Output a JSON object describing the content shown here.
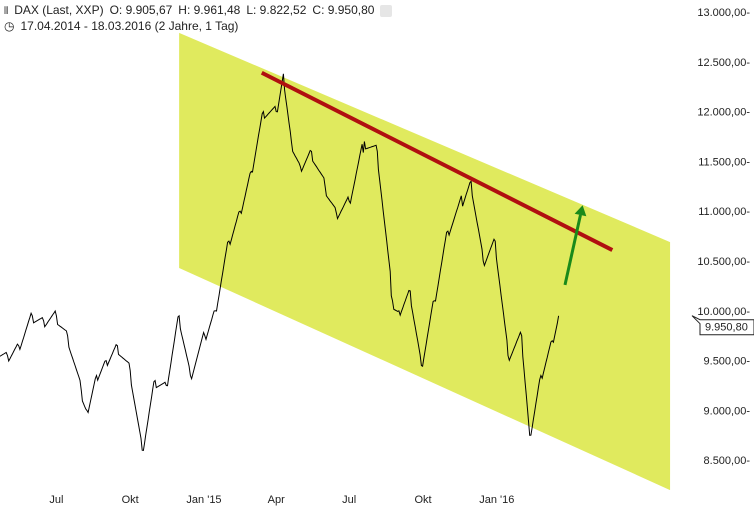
{
  "header": {
    "icon": "chart-bars-icon",
    "instrument": "DAX (Last, XXP)",
    "open": "O: 9.905,67",
    "high": "H: 9.961,48",
    "low": "L: 9.822,52",
    "close": "C: 9.950,80",
    "settings_icon": "settings-icon",
    "clock_icon": "clock-icon",
    "range": "17.04.2014 - 18.03.2016 (2 Jahre, 1 Tag)"
  },
  "chart_data": {
    "type": "line",
    "title": "",
    "ylim": [
      8300,
      13000
    ],
    "y_ticks": [
      {
        "v": 13000,
        "label": "13.000,00"
      },
      {
        "v": 12500,
        "label": "12.500,00"
      },
      {
        "v": 12000,
        "label": "12.000,00"
      },
      {
        "v": 11500,
        "label": "11.500,00"
      },
      {
        "v": 11000,
        "label": "11.000,00"
      },
      {
        "v": 10500,
        "label": "10.500,00"
      },
      {
        "v": 10000,
        "label": "10.000,00"
      },
      {
        "v": 9500,
        "label": "9.500,00"
      },
      {
        "v": 9000,
        "label": "9.000,00"
      },
      {
        "v": 8500,
        "label": "8.500,00"
      }
    ],
    "x_ticks": [
      {
        "date": "2014-07-01",
        "label": "Jul"
      },
      {
        "date": "2014-10-01",
        "label": "Okt"
      },
      {
        "date": "2015-01-01",
        "label": "Jan '15"
      },
      {
        "date": "2015-04-01",
        "label": "Apr"
      },
      {
        "date": "2015-07-01",
        "label": "Jul"
      },
      {
        "date": "2015-10-01",
        "label": "Okt"
      },
      {
        "date": "2016-01-01",
        "label": "Jan '16"
      }
    ],
    "last_price_label": "9.950,80",
    "last_price": 9950.8,
    "series": [
      {
        "color": "#000000",
        "points": [
          [
            "2014-04-17",
            9600
          ],
          [
            "2014-05-01",
            9550
          ],
          [
            "2014-05-15",
            9650
          ],
          [
            "2014-06-01",
            9950
          ],
          [
            "2014-06-15",
            9900
          ],
          [
            "2014-07-01",
            9950
          ],
          [
            "2014-07-15",
            9750
          ],
          [
            "2014-08-01",
            9200
          ],
          [
            "2014-08-08",
            9000
          ],
          [
            "2014-08-20",
            9350
          ],
          [
            "2014-09-01",
            9500
          ],
          [
            "2014-09-15",
            9650
          ],
          [
            "2014-10-01",
            9400
          ],
          [
            "2014-10-16",
            8600
          ],
          [
            "2014-11-01",
            9300
          ],
          [
            "2014-11-15",
            9250
          ],
          [
            "2014-12-01",
            9950
          ],
          [
            "2014-12-15",
            9350
          ],
          [
            "2015-01-02",
            9750
          ],
          [
            "2015-01-15",
            10000
          ],
          [
            "2015-02-01",
            10700
          ],
          [
            "2015-02-15",
            11000
          ],
          [
            "2015-03-01",
            11400
          ],
          [
            "2015-03-16",
            12000
          ],
          [
            "2015-04-01",
            12000
          ],
          [
            "2015-04-10",
            12380
          ],
          [
            "2015-04-20",
            11700
          ],
          [
            "2015-05-01",
            11450
          ],
          [
            "2015-05-15",
            11600
          ],
          [
            "2015-06-01",
            11250
          ],
          [
            "2015-06-15",
            10980
          ],
          [
            "2015-07-01",
            11100
          ],
          [
            "2015-07-20",
            11700
          ],
          [
            "2015-08-05",
            11600
          ],
          [
            "2015-08-24",
            10100
          ],
          [
            "2015-09-01",
            10000
          ],
          [
            "2015-09-15",
            10200
          ],
          [
            "2015-09-29",
            9450
          ],
          [
            "2015-10-15",
            10100
          ],
          [
            "2015-11-01",
            10800
          ],
          [
            "2015-11-30",
            11300
          ],
          [
            "2015-12-15",
            10500
          ],
          [
            "2015-12-30",
            10700
          ],
          [
            "2016-01-15",
            9550
          ],
          [
            "2016-02-01",
            9750
          ],
          [
            "2016-02-11",
            8750
          ],
          [
            "2016-02-25",
            9350
          ],
          [
            "2016-03-10",
            9700
          ],
          [
            "2016-03-18",
            9950
          ]
        ]
      }
    ],
    "annotations": {
      "channel": {
        "color": "#e0ea5e",
        "top": [
          [
            "2014-12-01",
            12790
          ],
          [
            "2016-08-04",
            10690
          ]
        ],
        "bottom": [
          [
            "2014-12-01",
            10430
          ],
          [
            "2016-08-04",
            8200
          ]
        ]
      },
      "trend_line": {
        "color": "#b01010",
        "points": [
          [
            "2015-03-14",
            12390
          ],
          [
            "2016-05-24",
            10610
          ]
        ]
      },
      "arrow": {
        "color": "#1a8a1a",
        "points": [
          [
            "2016-03-26",
            10260
          ],
          [
            "2016-04-17",
            11060
          ]
        ]
      }
    }
  }
}
